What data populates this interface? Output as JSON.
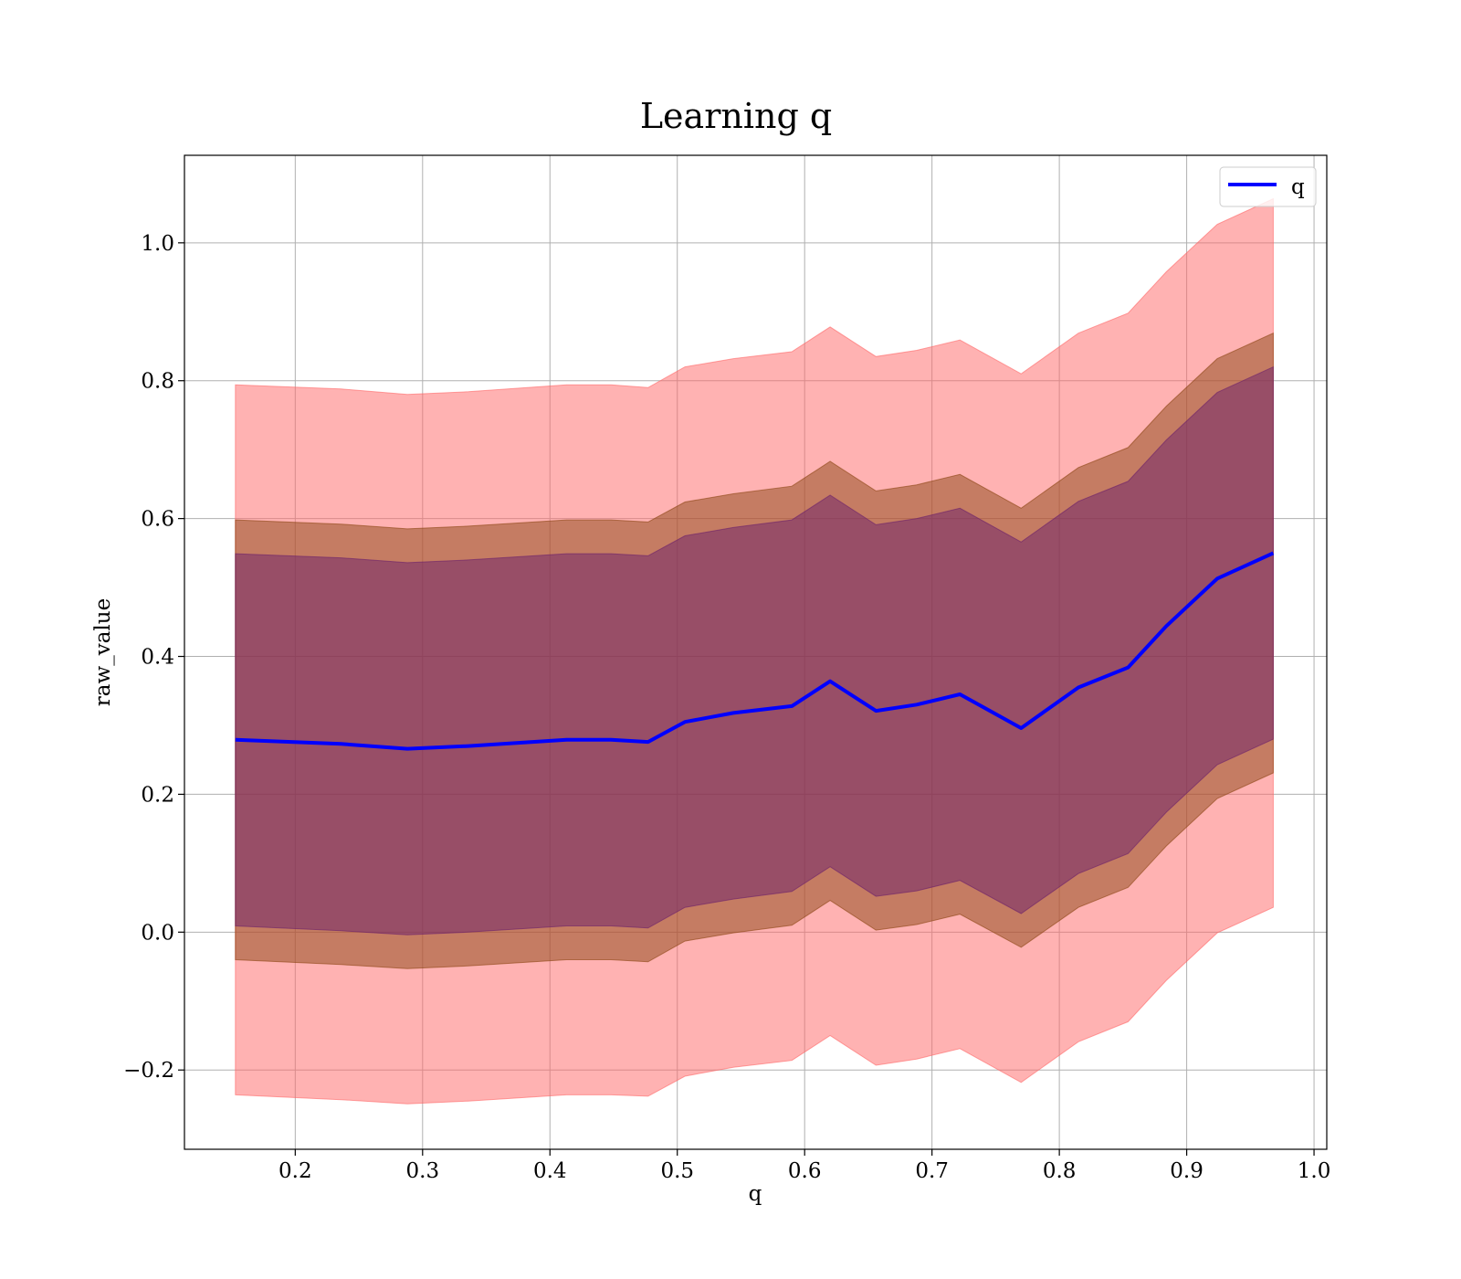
{
  "chart_data": {
    "type": "line",
    "title": "Learning q",
    "xlabel": "q",
    "ylabel": "raw_value",
    "xlim": [
      0.113,
      1.01
    ],
    "ylim": [
      -0.315,
      1.127
    ],
    "xticks": [
      0.2,
      0.3,
      0.4,
      0.5,
      0.6,
      0.7,
      0.8,
      0.9,
      1.0
    ],
    "xtick_labels": [
      "0.2",
      "0.3",
      "0.4",
      "0.5",
      "0.6",
      "0.7",
      "0.8",
      "0.9",
      "1.0"
    ],
    "yticks": [
      -0.2,
      0.0,
      0.2,
      0.4,
      0.6,
      0.8,
      1.0
    ],
    "ytick_labels": [
      "−0.2",
      "0.0",
      "0.2",
      "0.4",
      "0.6",
      "0.8",
      "1.0"
    ],
    "grid": true,
    "legend": {
      "position": "top-right",
      "entries": [
        "q"
      ]
    },
    "colors": {
      "line": "#0000ff",
      "band_outer": "#ff6666",
      "band_inner": "#8b4513",
      "band_center": "#6b1f6b",
      "grid": "#b0b0b0"
    },
    "x": [
      0.153,
      0.236,
      0.288,
      0.336,
      0.413,
      0.448,
      0.477,
      0.506,
      0.544,
      0.59,
      0.62,
      0.656,
      0.688,
      0.722,
      0.77,
      0.815,
      0.854,
      0.884,
      0.924,
      0.968
    ],
    "series": [
      {
        "name": "q",
        "values": [
          0.279,
          0.273,
          0.266,
          0.27,
          0.279,
          0.279,
          0.276,
          0.305,
          0.318,
          0.328,
          0.364,
          0.321,
          0.33,
          0.345,
          0.296,
          0.355,
          0.384,
          0.444,
          0.513,
          0.55
        ]
      }
    ],
    "bands": [
      {
        "lower": [
          -0.236,
          -0.243,
          -0.249,
          -0.245,
          -0.236,
          -0.236,
          -0.238,
          -0.209,
          -0.196,
          -0.186,
          -0.15,
          -0.193,
          -0.184,
          -0.169,
          -0.218,
          -0.159,
          -0.13,
          -0.07,
          -0.001,
          0.036
        ],
        "upper": [
          0.794,
          0.788,
          0.78,
          0.784,
          0.794,
          0.794,
          0.79,
          0.82,
          0.832,
          0.842,
          0.878,
          0.835,
          0.844,
          0.859,
          0.81,
          0.869,
          0.898,
          0.958,
          1.027,
          1.064
        ]
      },
      {
        "lower": [
          -0.04,
          -0.047,
          -0.053,
          -0.049,
          -0.04,
          -0.04,
          -0.043,
          -0.013,
          -0.001,
          0.01,
          0.046,
          0.003,
          0.011,
          0.026,
          -0.022,
          0.036,
          0.065,
          0.125,
          0.194,
          0.231
        ],
        "upper": [
          0.598,
          0.592,
          0.585,
          0.589,
          0.598,
          0.598,
          0.595,
          0.624,
          0.636,
          0.647,
          0.683,
          0.64,
          0.649,
          0.664,
          0.615,
          0.674,
          0.703,
          0.763,
          0.832,
          0.869
        ]
      },
      {
        "lower": [
          0.009,
          0.002,
          -0.004,
          0.0,
          0.009,
          0.009,
          0.006,
          0.036,
          0.048,
          0.059,
          0.095,
          0.052,
          0.06,
          0.075,
          0.027,
          0.085,
          0.114,
          0.174,
          0.243,
          0.28
        ],
        "upper": [
          0.549,
          0.543,
          0.536,
          0.54,
          0.549,
          0.549,
          0.546,
          0.575,
          0.587,
          0.598,
          0.634,
          0.591,
          0.6,
          0.615,
          0.566,
          0.625,
          0.654,
          0.714,
          0.783,
          0.82
        ]
      }
    ]
  }
}
